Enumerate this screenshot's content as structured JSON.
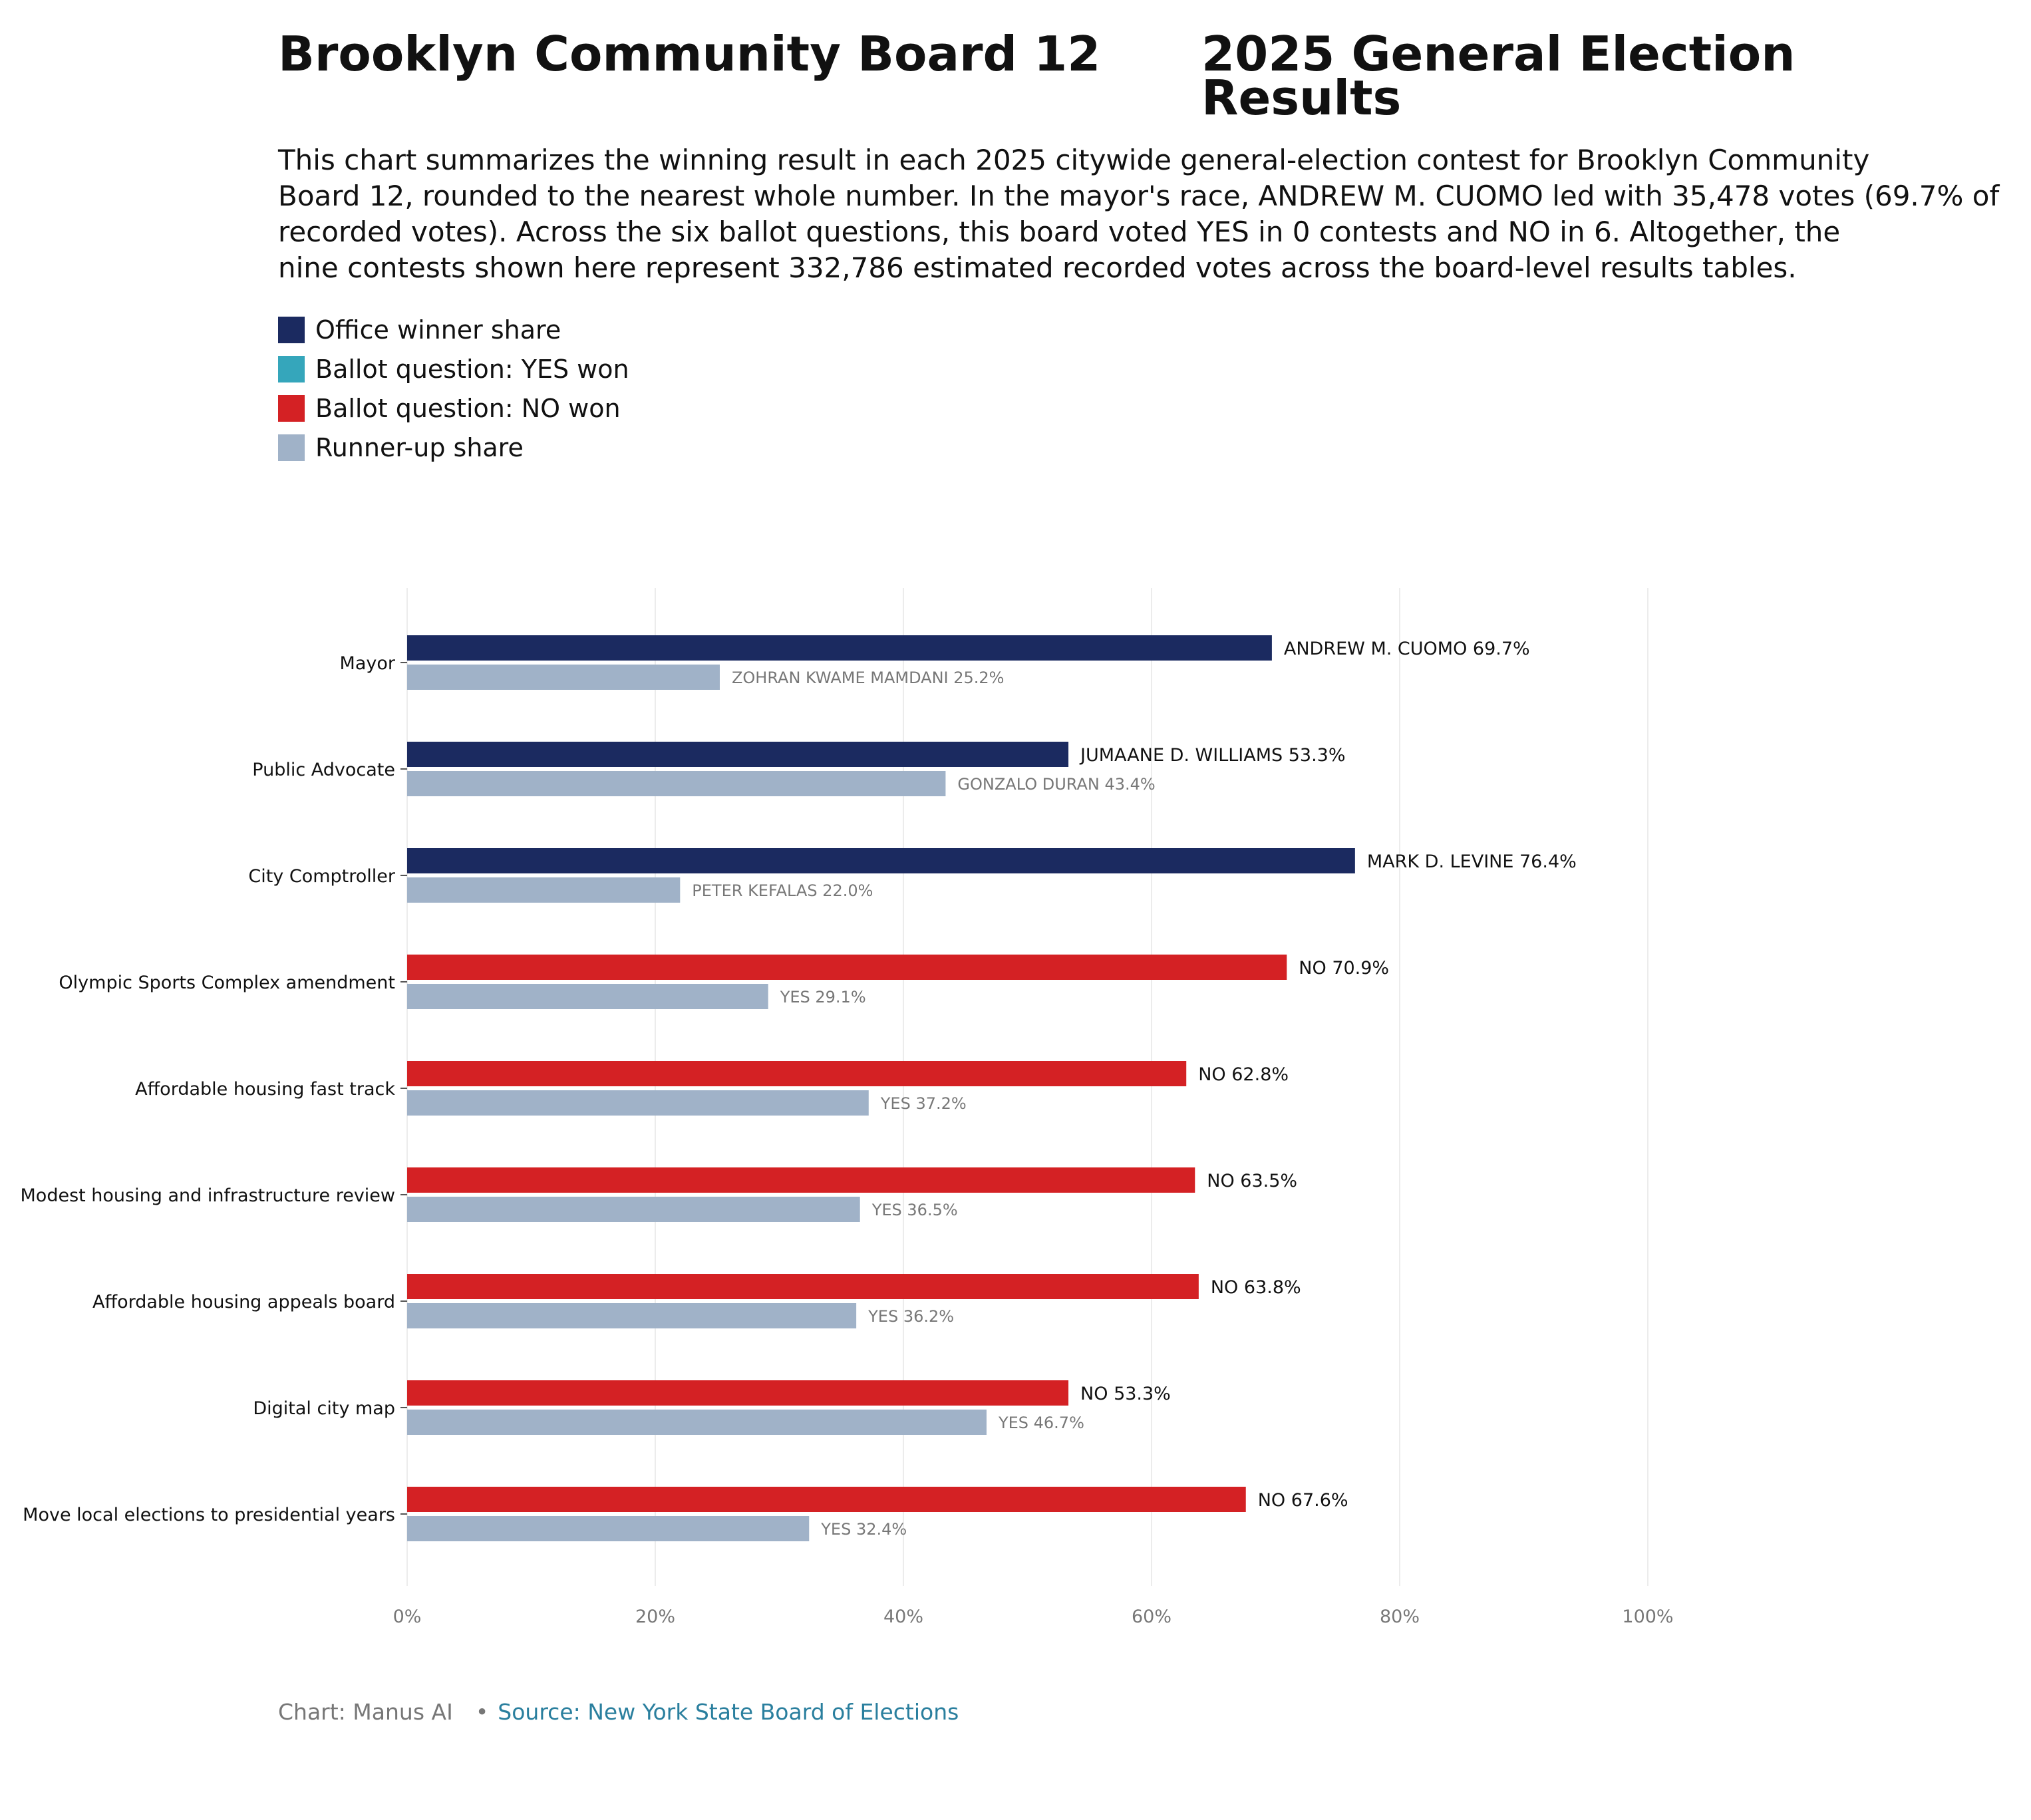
{
  "header": {
    "title_left": "Brooklyn Community Board 12",
    "title_right": "2025 General Election Results"
  },
  "description": {
    "lines": [
      "This chart summarizes the winning result in each 2025 citywide general-election contest for Brooklyn Community",
      "Board 12, rounded to the nearest whole number. In the mayor's race, ANDREW M. CUOMO led with 35,478 votes (69.7% of",
      "recorded votes). Across the six ballot questions, this board voted YES in 0 contests and NO in 6. Altogether, the",
      "nine contests shown here represent 332,786 estimated recorded votes across the board-level results tables."
    ]
  },
  "legend": {
    "items": [
      {
        "label": "Office winner share",
        "color": "#1b2a60"
      },
      {
        "label": "Ballot question: YES won",
        "color": "#35a6bb"
      },
      {
        "label": "Ballot question: NO won",
        "color": "#d42124"
      },
      {
        "label": "Runner-up share",
        "color": "#a0b2c8"
      }
    ]
  },
  "chart_data": {
    "type": "bar",
    "orientation": "horizontal",
    "xlim": [
      0,
      100
    ],
    "x_ticks": [
      "0%",
      "20%",
      "40%",
      "60%",
      "80%",
      "100%"
    ],
    "grid": true,
    "colors": {
      "office_winner": "#1b2a60",
      "yes_won": "#35a6bb",
      "no_won": "#d42124",
      "runner_up": "#a0b2c8"
    },
    "categories": [
      "Mayor",
      "Public Advocate",
      "City Comptroller",
      "Olympic Sports Complex amendment",
      "Affordable housing fast track",
      "Modest housing and infrastructure review",
      "Affordable housing appeals board",
      "Digital city map",
      "Move local elections to presidential years"
    ],
    "rows": [
      {
        "category": "Mayor",
        "kind": "office",
        "winner": "ANDREW M. CUOMO",
        "winner_value": 69.7,
        "runner_up": "ZOHRAN KWAME MAMDANI",
        "runner_up_value": 25.2
      },
      {
        "category": "Public Advocate",
        "kind": "office",
        "winner": "JUMAANE D. WILLIAMS",
        "winner_value": 53.3,
        "runner_up": "GONZALO DURAN",
        "runner_up_value": 43.4
      },
      {
        "category": "City Comptroller",
        "kind": "office",
        "winner": "MARK D. LEVINE",
        "winner_value": 76.4,
        "runner_up": "PETER KEFALAS",
        "runner_up_value": 22.0
      },
      {
        "category": "Olympic Sports Complex amendment",
        "kind": "no",
        "winner": "NO",
        "winner_value": 70.9,
        "runner_up": "YES",
        "runner_up_value": 29.1
      },
      {
        "category": "Affordable housing fast track",
        "kind": "no",
        "winner": "NO",
        "winner_value": 62.8,
        "runner_up": "YES",
        "runner_up_value": 37.2
      },
      {
        "category": "Modest housing and infrastructure review",
        "kind": "no",
        "winner": "NO",
        "winner_value": 63.5,
        "runner_up": "YES",
        "runner_up_value": 36.5
      },
      {
        "category": "Affordable housing appeals board",
        "kind": "no",
        "winner": "NO",
        "winner_value": 63.8,
        "runner_up": "YES",
        "runner_up_value": 36.2
      },
      {
        "category": "Digital city map",
        "kind": "no",
        "winner": "NO",
        "winner_value": 53.3,
        "runner_up": "YES",
        "runner_up_value": 46.7
      },
      {
        "category": "Move local elections to presidential years",
        "kind": "no",
        "winner": "NO",
        "winner_value": 67.6,
        "runner_up": "YES",
        "runner_up_value": 32.4
      }
    ]
  },
  "footer": {
    "credit": "Chart: Manus AI",
    "separator": "•",
    "source": "Source: New York State Board of Elections"
  }
}
